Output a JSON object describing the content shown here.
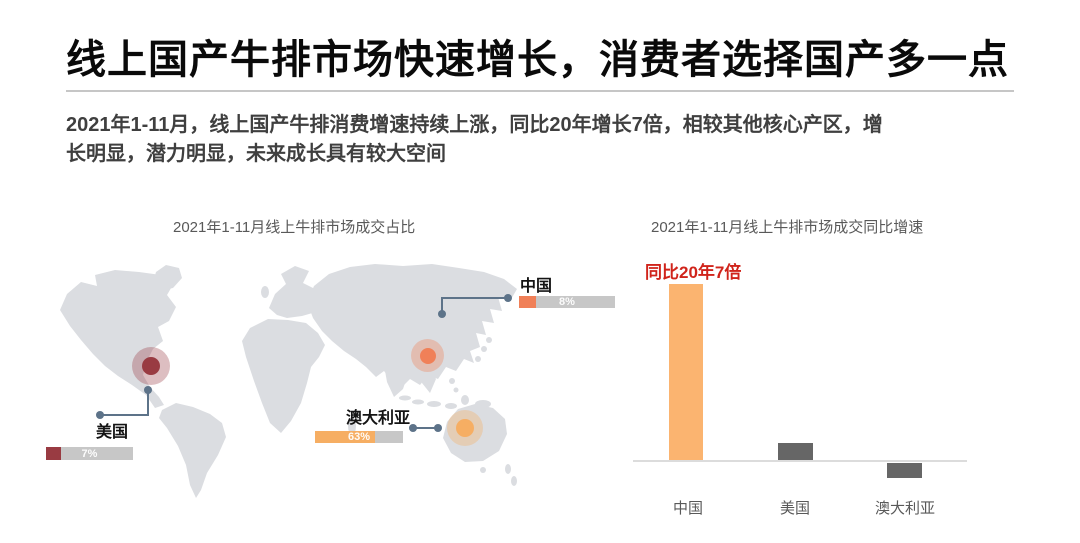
{
  "slide": {
    "title": "线上国产牛排市场快速增长，消费者选择国产多一点",
    "subtitle_line1": "2021年1-11月，线上国产牛排消费增速持续上涨，同比20年增长7倍，相较其他核心产区，增",
    "subtitle_line2": "长明显，潜力明显，未来成长具有较大空间"
  },
  "left_chart": {
    "title": "2021年1-11月线上牛排市场成交占比",
    "markers": [
      {
        "name": "美国",
        "value": "7%",
        "color": "#993B42",
        "halo": "rgba(153,59,66,0.33)"
      },
      {
        "name": "中国",
        "value": "8%",
        "color": "#F08058",
        "halo": "rgba(240,128,88,0.35)"
      },
      {
        "name": "澳大利亚",
        "value": "63%",
        "color": "#F6AE63",
        "halo": "rgba(246,174,99,0.35)"
      }
    ],
    "bar_track_color": "#C7C7C7",
    "map_color": "#DBDDE1",
    "connector_color": "#5D7389"
  },
  "right_chart": {
    "title": "2021年1-11月线上牛排市场成交同比增速",
    "annotation": "同比20年7倍",
    "annotation_color": "#D0241B"
  },
  "chart_data": [
    {
      "type": "bar",
      "variant": "map-share-callouts",
      "title": "2021年1-11月线上牛排市场成交占比",
      "categories": [
        "美国",
        "中国",
        "澳大利亚"
      ],
      "values": [
        7,
        8,
        63
      ],
      "unit": "%",
      "legend": "none",
      "notes": "market share shown as callout bars pinned to a light-gray world map"
    },
    {
      "type": "bar",
      "title": "2021年1-11月线上牛排市场成交同比增速",
      "categories": [
        "中国",
        "美国",
        "澳大利亚"
      ],
      "values": [
        7,
        0.7,
        -0.6
      ],
      "unit": "倍 (x vs 2020)",
      "annotation": "同比20年7倍",
      "bar_colors": [
        "#FBB470",
        "#666666",
        "#666666"
      ],
      "ylim": [
        -1,
        7.5
      ],
      "grid": false,
      "legend": "none",
      "axis_color": "#DCDCDC"
    }
  ]
}
